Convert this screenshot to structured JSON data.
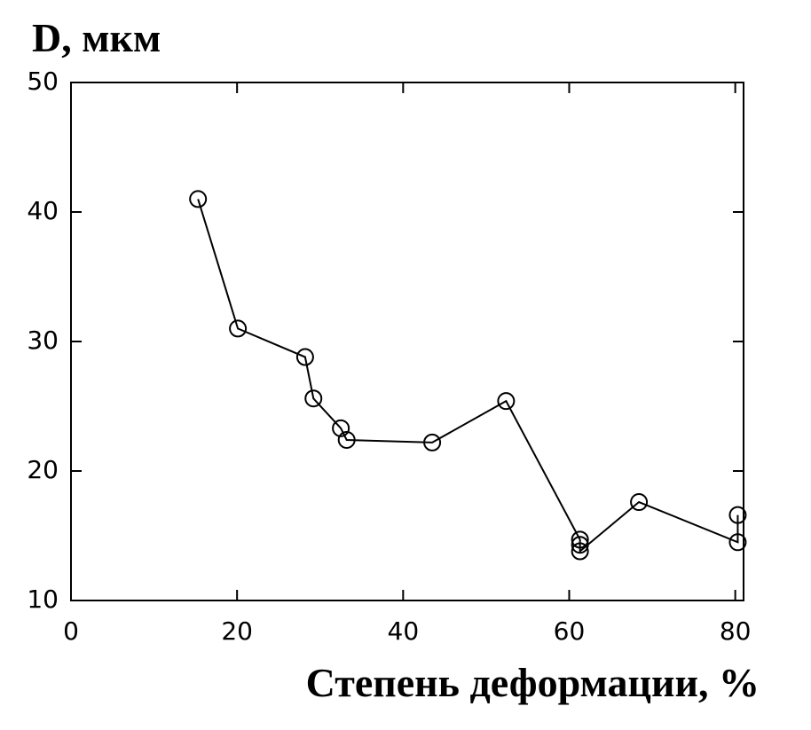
{
  "chart_data": {
    "type": "line",
    "y_label": "D, мкм",
    "x_label": "Степень деформации, %",
    "x": [
      15.3,
      20.1,
      28.2,
      29.2,
      32.5,
      33.2,
      43.5,
      52.4,
      61.3,
      61.3,
      61.3,
      68.4,
      80.3,
      80.3
    ],
    "values": [
      41,
      31,
      28.8,
      25.6,
      23.3,
      22.4,
      22.2,
      25.4,
      14.7,
      14.3,
      13.8,
      17.6,
      14.5,
      16.6
    ],
    "color": "#000000",
    "xlim": [
      0,
      81
    ],
    "xticks": [
      0,
      20,
      40,
      60,
      80
    ],
    "ylim": [
      10,
      50
    ],
    "yticks": [
      10,
      20,
      30,
      40,
      50
    ]
  }
}
